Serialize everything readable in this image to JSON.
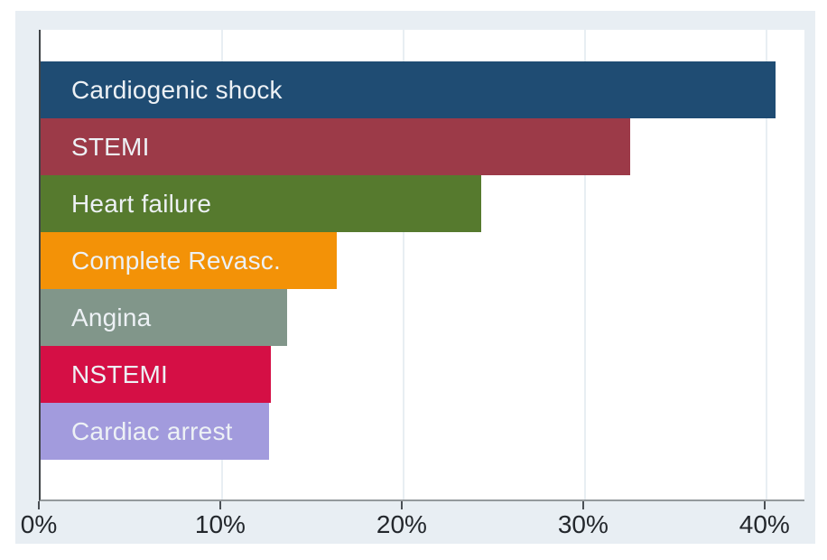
{
  "chart_data": {
    "type": "bar",
    "orientation": "horizontal",
    "title": "",
    "xlabel": "",
    "ylabel": "",
    "legend": "none",
    "grid": "vertical gridlines at x ticks, drawn in background color",
    "categories": [
      "Cardiogenic shock",
      "STEMI",
      "Heart failure",
      "Complete Revasc.",
      "Angina",
      "NSTEMI",
      "Cardiac arrest"
    ],
    "values": [
      40.5,
      32.5,
      24.3,
      16.3,
      13.6,
      12.7,
      12.6
    ],
    "value_unit": "%",
    "bar_colors": [
      "#1f4c73",
      "#9c3a48",
      "#567a2e",
      "#f39207",
      "#81968a",
      "#d50f45",
      "#a29bdd"
    ],
    "x_axis_max": 42.1,
    "x_ticks": [
      {
        "value": 0,
        "label": "0%"
      },
      {
        "value": 10,
        "label": "10%"
      },
      {
        "value": 20,
        "label": "20%"
      },
      {
        "value": 30,
        "label": "30%"
      },
      {
        "value": 40,
        "label": "40%"
      }
    ]
  },
  "colors": {
    "page_background": "#ffffff",
    "panel_background": "#e8eef3",
    "plot_background": "#ffffff",
    "gridline": "#e8eef3",
    "y_axis_line": "#3f4347",
    "x_axis_line": "#94999c",
    "tick_mark": "#4a4f54",
    "tick_label": "#23272c",
    "bar_label": "#edf1f5"
  }
}
